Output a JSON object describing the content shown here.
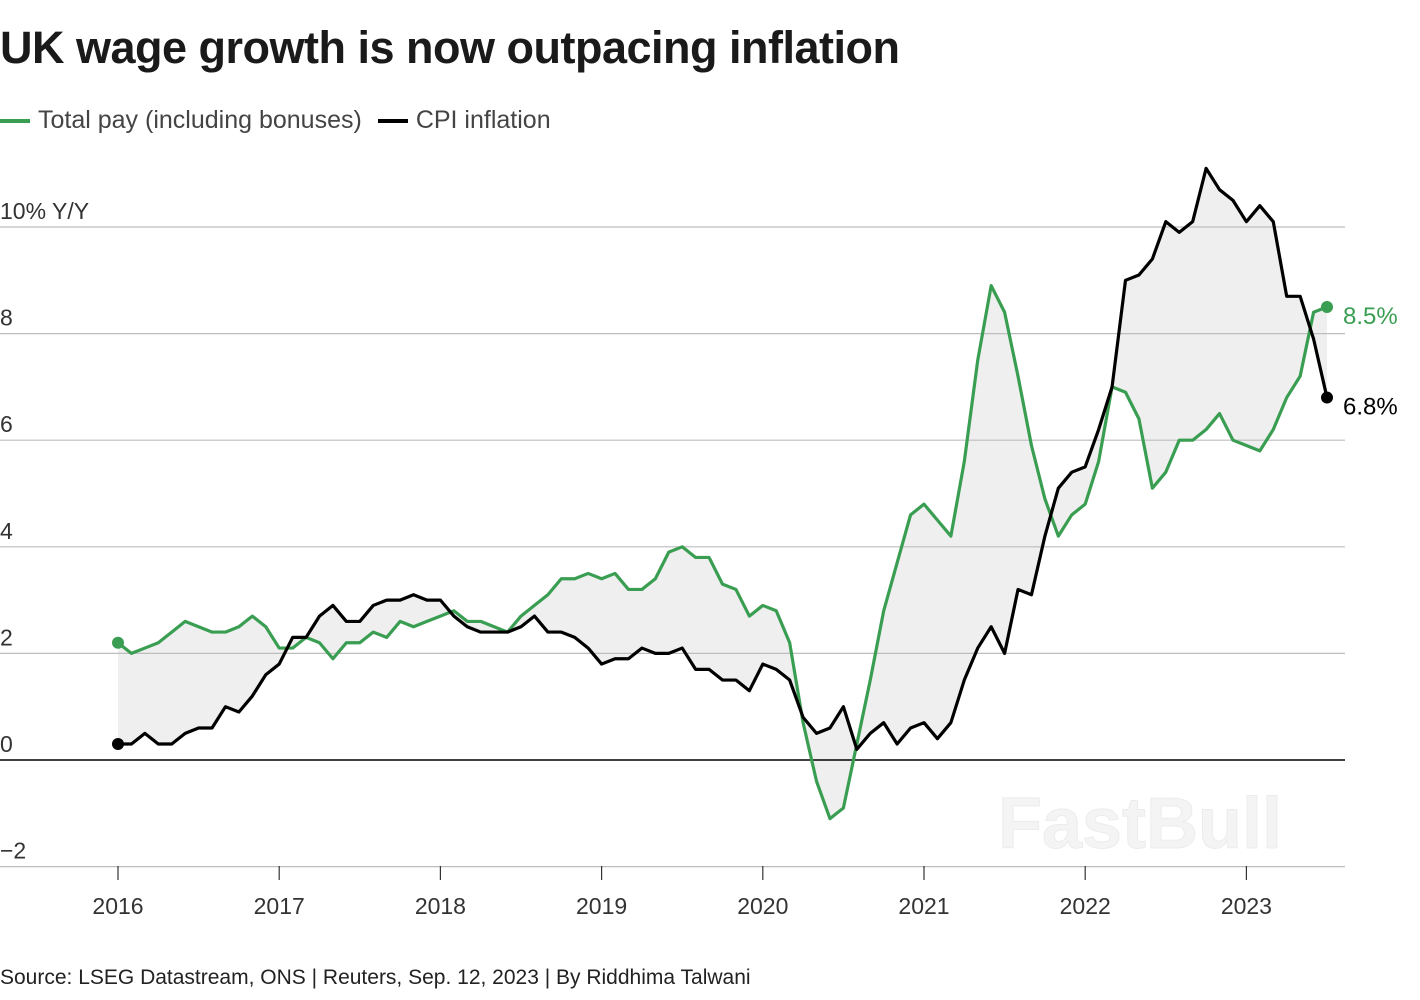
{
  "title": "UK wage growth is now outpacing inflation",
  "source": "Source: LSEG Datastream, ONS | Reuters, Sep. 12, 2023 | By Riddhima Talwani",
  "watermark": "FastBull",
  "colors": {
    "pay": "#3a9e52",
    "cpi": "#000000",
    "fill": "#efefef",
    "grid": "#bdbdbd"
  },
  "chart_data": {
    "type": "line",
    "title": "UK wage growth is now outpacing inflation",
    "ylabel": "% Y/Y",
    "ylim": [
      -2.2,
      11.5
    ],
    "xlim": [
      2016,
      2023.6
    ],
    "x_start": "2016-01",
    "frequency": "monthly",
    "x_ticks": [
      "2016",
      "2017",
      "2018",
      "2019",
      "2020",
      "2021",
      "2022",
      "2023"
    ],
    "y_ticks": [
      {
        "v": 10,
        "label": "10% Y/Y"
      },
      {
        "v": 8,
        "label": "8"
      },
      {
        "v": 6,
        "label": "6"
      },
      {
        "v": 4,
        "label": "4"
      },
      {
        "v": 2,
        "label": "2"
      },
      {
        "v": 0,
        "label": "0"
      },
      {
        "v": -2,
        "label": "−2"
      }
    ],
    "grid": true,
    "legend_position": "top-left",
    "series": [
      {
        "name": "Total pay (including bonuses)",
        "key": "pay",
        "end_label": "8.5%",
        "values": [
          2.2,
          2.0,
          2.1,
          2.2,
          2.4,
          2.6,
          2.5,
          2.4,
          2.4,
          2.5,
          2.7,
          2.5,
          2.1,
          2.1,
          2.3,
          2.2,
          1.9,
          2.2,
          2.2,
          2.4,
          2.3,
          2.6,
          2.5,
          2.6,
          2.7,
          2.8,
          2.6,
          2.6,
          2.5,
          2.4,
          2.7,
          2.9,
          3.1,
          3.4,
          3.4,
          3.5,
          3.4,
          3.5,
          3.2,
          3.2,
          3.4,
          3.9,
          4.0,
          3.8,
          3.8,
          3.3,
          3.2,
          2.7,
          2.9,
          2.8,
          2.2,
          0.7,
          -0.4,
          -1.1,
          -0.9,
          0.3,
          1.5,
          2.8,
          3.7,
          4.6,
          4.8,
          4.5,
          4.2,
          5.6,
          7.5,
          8.9,
          8.4,
          7.2,
          5.9,
          4.9,
          4.2,
          4.6,
          4.8,
          5.6,
          7.0,
          6.9,
          6.4,
          5.1,
          5.4,
          6.0,
          6.0,
          6.2,
          6.5,
          6.0,
          5.9,
          5.8,
          6.2,
          6.8,
          7.2,
          8.4,
          8.5
        ]
      },
      {
        "name": "CPI inflation",
        "key": "cpi",
        "end_label": "6.8%",
        "values": [
          0.3,
          0.3,
          0.5,
          0.3,
          0.3,
          0.5,
          0.6,
          0.6,
          1.0,
          0.9,
          1.2,
          1.6,
          1.8,
          2.3,
          2.3,
          2.7,
          2.9,
          2.6,
          2.6,
          2.9,
          3.0,
          3.0,
          3.1,
          3.0,
          3.0,
          2.7,
          2.5,
          2.4,
          2.4,
          2.4,
          2.5,
          2.7,
          2.4,
          2.4,
          2.3,
          2.1,
          1.8,
          1.9,
          1.9,
          2.1,
          2.0,
          2.0,
          2.1,
          1.7,
          1.7,
          1.5,
          1.5,
          1.3,
          1.8,
          1.7,
          1.5,
          0.8,
          0.5,
          0.6,
          1.0,
          0.2,
          0.5,
          0.7,
          0.3,
          0.6,
          0.7,
          0.4,
          0.7,
          1.5,
          2.1,
          2.5,
          2.0,
          3.2,
          3.1,
          4.2,
          5.1,
          5.4,
          5.5,
          6.2,
          7.0,
          9.0,
          9.1,
          9.4,
          10.1,
          9.9,
          10.1,
          11.1,
          10.7,
          10.5,
          10.1,
          10.4,
          10.1,
          8.7,
          8.7,
          7.9,
          6.8
        ]
      }
    ]
  }
}
